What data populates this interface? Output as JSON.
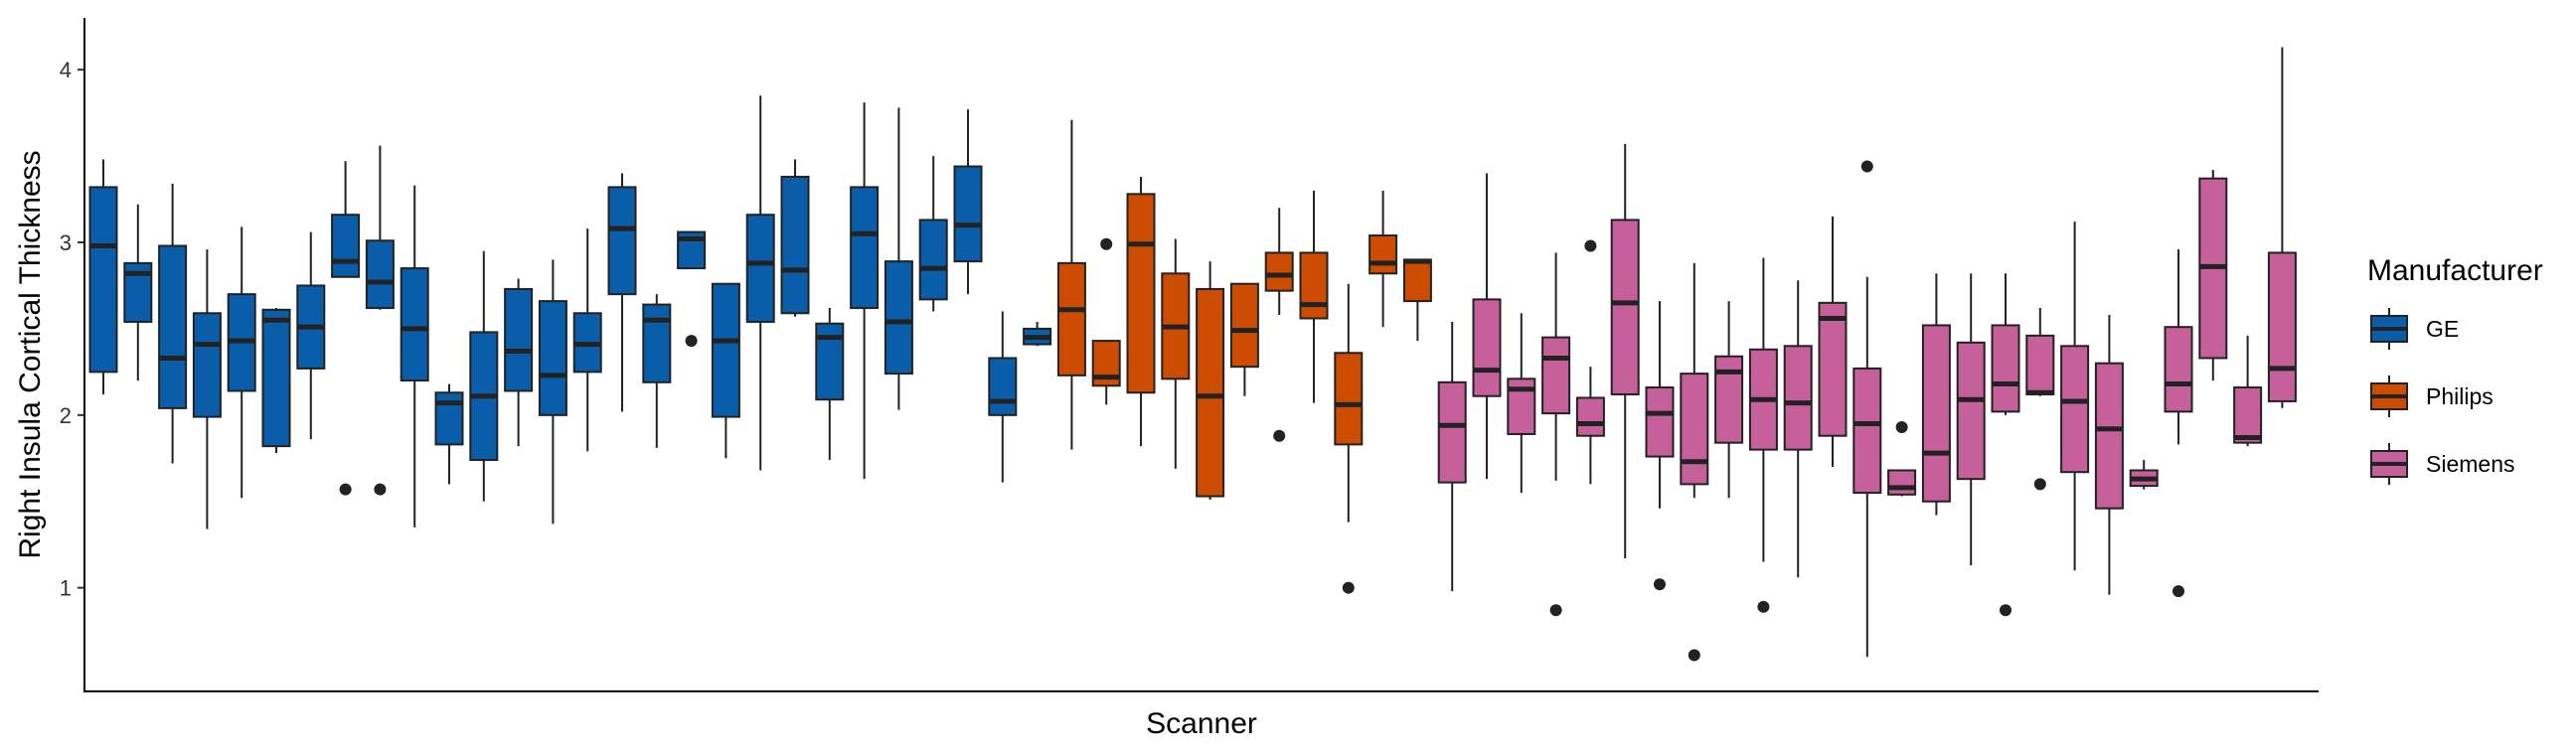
{
  "chart_data": {
    "type": "box",
    "xlabel": "Scanner",
    "ylabel": "Right Insula Cortical Thickness",
    "ylim": [
      0.4,
      4.3
    ],
    "yticks": [
      1,
      2,
      3,
      4
    ],
    "grid": false,
    "legend": {
      "title": "Manufacturer",
      "placement": "right",
      "entries": [
        {
          "name": "GE",
          "color": "#0A5DA8"
        },
        {
          "name": "Philips",
          "color": "#CC4C02"
        },
        {
          "name": "Siemens",
          "color": "#C6609B"
        }
      ]
    },
    "boxes": [
      {
        "group": "GE",
        "wlo": 2.12,
        "q1": 2.25,
        "med": 2.98,
        "q3": 3.32,
        "whi": 3.48,
        "outliers": []
      },
      {
        "group": "GE",
        "wlo": 2.2,
        "q1": 2.54,
        "med": 2.82,
        "q3": 2.88,
        "whi": 3.22,
        "outliers": []
      },
      {
        "group": "GE",
        "wlo": 1.72,
        "q1": 2.04,
        "med": 2.33,
        "q3": 2.98,
        "whi": 3.34,
        "outliers": []
      },
      {
        "group": "GE",
        "wlo": 1.34,
        "q1": 1.99,
        "med": 2.41,
        "q3": 2.59,
        "whi": 2.96,
        "outliers": []
      },
      {
        "group": "GE",
        "wlo": 1.52,
        "q1": 2.14,
        "med": 2.43,
        "q3": 2.7,
        "whi": 3.09,
        "outliers": []
      },
      {
        "group": "GE",
        "wlo": 1.78,
        "q1": 1.82,
        "med": 2.55,
        "q3": 2.61,
        "whi": 2.62,
        "outliers": []
      },
      {
        "group": "GE",
        "wlo": 1.86,
        "q1": 2.27,
        "med": 2.51,
        "q3": 2.75,
        "whi": 3.06,
        "outliers": []
      },
      {
        "group": "GE",
        "wlo": 2.8,
        "q1": 2.8,
        "med": 2.89,
        "q3": 3.16,
        "whi": 3.47,
        "outliers": [
          1.57
        ]
      },
      {
        "group": "GE",
        "wlo": 2.61,
        "q1": 2.62,
        "med": 2.77,
        "q3": 3.01,
        "whi": 3.56,
        "outliers": [
          1.57
        ]
      },
      {
        "group": "GE",
        "wlo": 1.35,
        "q1": 2.2,
        "med": 2.5,
        "q3": 2.85,
        "whi": 3.33,
        "outliers": []
      },
      {
        "group": "GE",
        "wlo": 1.6,
        "q1": 1.83,
        "med": 2.07,
        "q3": 2.13,
        "whi": 2.18,
        "outliers": []
      },
      {
        "group": "GE",
        "wlo": 1.5,
        "q1": 1.74,
        "med": 2.11,
        "q3": 2.48,
        "whi": 2.95,
        "outliers": []
      },
      {
        "group": "GE",
        "wlo": 1.82,
        "q1": 2.14,
        "med": 2.37,
        "q3": 2.73,
        "whi": 2.79,
        "outliers": []
      },
      {
        "group": "GE",
        "wlo": 1.37,
        "q1": 2.0,
        "med": 2.23,
        "q3": 2.66,
        "whi": 2.9,
        "outliers": []
      },
      {
        "group": "GE",
        "wlo": 1.79,
        "q1": 2.25,
        "med": 2.41,
        "q3": 2.59,
        "whi": 3.08,
        "outliers": []
      },
      {
        "group": "GE",
        "wlo": 2.02,
        "q1": 2.7,
        "med": 3.08,
        "q3": 3.32,
        "whi": 3.4,
        "outliers": []
      },
      {
        "group": "GE",
        "wlo": 1.81,
        "q1": 2.19,
        "med": 2.55,
        "q3": 2.64,
        "whi": 2.7,
        "outliers": []
      },
      {
        "group": "GE",
        "wlo": 2.85,
        "q1": 2.85,
        "med": 3.02,
        "q3": 3.06,
        "whi": 3.06,
        "outliers": [
          2.43
        ]
      },
      {
        "group": "GE",
        "wlo": 1.75,
        "q1": 1.99,
        "med": 2.43,
        "q3": 2.76,
        "whi": 2.76,
        "outliers": []
      },
      {
        "group": "GE",
        "wlo": 1.68,
        "q1": 2.54,
        "med": 2.88,
        "q3": 3.16,
        "whi": 3.85,
        "outliers": []
      },
      {
        "group": "GE",
        "wlo": 2.57,
        "q1": 2.59,
        "med": 2.84,
        "q3": 3.38,
        "whi": 3.48,
        "outliers": []
      },
      {
        "group": "GE",
        "wlo": 1.74,
        "q1": 2.09,
        "med": 2.45,
        "q3": 2.53,
        "whi": 2.62,
        "outliers": []
      },
      {
        "group": "GE",
        "wlo": 1.63,
        "q1": 2.62,
        "med": 3.05,
        "q3": 3.32,
        "whi": 3.81,
        "outliers": []
      },
      {
        "group": "GE",
        "wlo": 2.03,
        "q1": 2.24,
        "med": 2.54,
        "q3": 2.89,
        "whi": 3.78,
        "outliers": []
      },
      {
        "group": "GE",
        "wlo": 2.6,
        "q1": 2.67,
        "med": 2.85,
        "q3": 3.13,
        "whi": 3.5,
        "outliers": []
      },
      {
        "group": "GE",
        "wlo": 2.7,
        "q1": 2.89,
        "med": 3.1,
        "q3": 3.44,
        "whi": 3.77,
        "outliers": []
      },
      {
        "group": "GE",
        "wlo": 1.61,
        "q1": 2.0,
        "med": 2.08,
        "q3": 2.33,
        "whi": 2.6,
        "outliers": []
      },
      {
        "group": "GE",
        "wlo": 2.4,
        "q1": 2.41,
        "med": 2.45,
        "q3": 2.5,
        "whi": 2.54,
        "outliers": []
      },
      {
        "group": "Philips",
        "wlo": 1.8,
        "q1": 2.23,
        "med": 2.61,
        "q3": 2.88,
        "whi": 3.71,
        "outliers": []
      },
      {
        "group": "Philips",
        "wlo": 2.06,
        "q1": 2.17,
        "med": 2.22,
        "q3": 2.43,
        "whi": 2.43,
        "outliers": [
          2.99
        ]
      },
      {
        "group": "Philips",
        "wlo": 1.82,
        "q1": 2.13,
        "med": 2.99,
        "q3": 3.28,
        "whi": 3.38,
        "outliers": []
      },
      {
        "group": "Philips",
        "wlo": 1.69,
        "q1": 2.21,
        "med": 2.51,
        "q3": 2.82,
        "whi": 3.02,
        "outliers": []
      },
      {
        "group": "Philips",
        "wlo": 1.51,
        "q1": 1.53,
        "med": 2.11,
        "q3": 2.73,
        "whi": 2.89,
        "outliers": []
      },
      {
        "group": "Philips",
        "wlo": 2.11,
        "q1": 2.28,
        "med": 2.49,
        "q3": 2.76,
        "whi": 2.76,
        "outliers": []
      },
      {
        "group": "Philips",
        "wlo": 2.58,
        "q1": 2.72,
        "med": 2.81,
        "q3": 2.94,
        "whi": 3.2,
        "outliers": [
          1.88
        ]
      },
      {
        "group": "Philips",
        "wlo": 2.07,
        "q1": 2.56,
        "med": 2.64,
        "q3": 2.94,
        "whi": 3.3,
        "outliers": []
      },
      {
        "group": "Philips",
        "wlo": 1.38,
        "q1": 1.83,
        "med": 2.06,
        "q3": 2.36,
        "whi": 2.76,
        "outliers": [
          1.0
        ]
      },
      {
        "group": "Philips",
        "wlo": 2.51,
        "q1": 2.82,
        "med": 2.88,
        "q3": 3.04,
        "whi": 3.3,
        "outliers": []
      },
      {
        "group": "Philips",
        "wlo": 2.43,
        "q1": 2.66,
        "med": 2.89,
        "q3": 2.9,
        "whi": 2.9,
        "outliers": []
      },
      {
        "group": "Siemens",
        "wlo": 0.98,
        "q1": 1.61,
        "med": 1.94,
        "q3": 2.19,
        "whi": 2.54,
        "outliers": []
      },
      {
        "group": "Siemens",
        "wlo": 1.63,
        "q1": 2.11,
        "med": 2.26,
        "q3": 2.67,
        "whi": 3.4,
        "outliers": []
      },
      {
        "group": "Siemens",
        "wlo": 1.55,
        "q1": 1.89,
        "med": 2.15,
        "q3": 2.21,
        "whi": 2.59,
        "outliers": []
      },
      {
        "group": "Siemens",
        "wlo": 1.62,
        "q1": 2.01,
        "med": 2.33,
        "q3": 2.45,
        "whi": 2.94,
        "outliers": [
          0.87
        ]
      },
      {
        "group": "Siemens",
        "wlo": 1.6,
        "q1": 1.88,
        "med": 1.95,
        "q3": 2.1,
        "whi": 2.28,
        "outliers": [
          2.98
        ]
      },
      {
        "group": "Siemens",
        "wlo": 1.17,
        "q1": 2.12,
        "med": 2.65,
        "q3": 3.13,
        "whi": 3.57,
        "outliers": []
      },
      {
        "group": "Siemens",
        "wlo": 1.46,
        "q1": 1.76,
        "med": 2.01,
        "q3": 2.16,
        "whi": 2.66,
        "outliers": [
          1.02
        ]
      },
      {
        "group": "Siemens",
        "wlo": 1.52,
        "q1": 1.6,
        "med": 1.73,
        "q3": 2.24,
        "whi": 2.88,
        "outliers": [
          0.61
        ]
      },
      {
        "group": "Siemens",
        "wlo": 1.52,
        "q1": 1.84,
        "med": 2.25,
        "q3": 2.34,
        "whi": 2.66,
        "outliers": []
      },
      {
        "group": "Siemens",
        "wlo": 1.15,
        "q1": 1.8,
        "med": 2.09,
        "q3": 2.38,
        "whi": 2.91,
        "outliers": [
          0.89
        ]
      },
      {
        "group": "Siemens",
        "wlo": 1.06,
        "q1": 1.8,
        "med": 2.07,
        "q3": 2.4,
        "whi": 2.78,
        "outliers": []
      },
      {
        "group": "Siemens",
        "wlo": 1.7,
        "q1": 1.88,
        "med": 2.56,
        "q3": 2.65,
        "whi": 3.15,
        "outliers": []
      },
      {
        "group": "Siemens",
        "wlo": 0.6,
        "q1": 1.55,
        "med": 1.95,
        "q3": 2.27,
        "whi": 2.8,
        "outliers": [
          3.44
        ]
      },
      {
        "group": "Siemens",
        "wlo": 1.53,
        "q1": 1.54,
        "med": 1.58,
        "q3": 1.68,
        "whi": 1.68,
        "outliers": [
          1.93
        ]
      },
      {
        "group": "Siemens",
        "wlo": 1.42,
        "q1": 1.5,
        "med": 1.78,
        "q3": 2.52,
        "whi": 2.82,
        "outliers": []
      },
      {
        "group": "Siemens",
        "wlo": 1.13,
        "q1": 1.63,
        "med": 2.09,
        "q3": 2.42,
        "whi": 2.82,
        "outliers": []
      },
      {
        "group": "Siemens",
        "wlo": 2.0,
        "q1": 2.02,
        "med": 2.18,
        "q3": 2.52,
        "whi": 2.82,
        "outliers": [
          0.87
        ]
      },
      {
        "group": "Siemens",
        "wlo": 2.11,
        "q1": 2.12,
        "med": 2.13,
        "q3": 2.46,
        "whi": 2.62,
        "outliers": [
          1.6
        ]
      },
      {
        "group": "Siemens",
        "wlo": 1.1,
        "q1": 1.67,
        "med": 2.08,
        "q3": 2.4,
        "whi": 3.12,
        "outliers": []
      },
      {
        "group": "Siemens",
        "wlo": 0.96,
        "q1": 1.46,
        "med": 1.92,
        "q3": 2.3,
        "whi": 2.58,
        "outliers": []
      },
      {
        "group": "Siemens",
        "wlo": 1.57,
        "q1": 1.59,
        "med": 1.63,
        "q3": 1.68,
        "whi": 1.74,
        "outliers": []
      },
      {
        "group": "Siemens",
        "wlo": 1.83,
        "q1": 2.02,
        "med": 2.18,
        "q3": 2.51,
        "whi": 2.96,
        "outliers": [
          0.98
        ]
      },
      {
        "group": "Siemens",
        "wlo": 2.2,
        "q1": 2.33,
        "med": 2.86,
        "q3": 3.37,
        "whi": 3.42,
        "outliers": []
      },
      {
        "group": "Siemens",
        "wlo": 1.82,
        "q1": 1.84,
        "med": 1.87,
        "q3": 2.16,
        "whi": 2.46,
        "outliers": []
      },
      {
        "group": "Siemens",
        "wlo": 2.04,
        "q1": 2.08,
        "med": 2.27,
        "q3": 2.94,
        "whi": 4.13,
        "outliers": []
      }
    ]
  }
}
